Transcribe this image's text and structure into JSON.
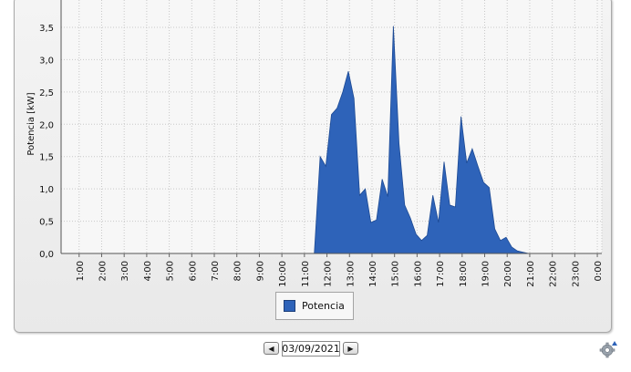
{
  "chart_data": {
    "type": "area",
    "ylabel": "Potencia [kW]",
    "ylim": [
      0,
      3.6
    ],
    "y_ticks": [
      "0,0",
      "0,5",
      "1,0",
      "1,5",
      "2,0",
      "2,5",
      "3,0",
      "3,5"
    ],
    "y_tick_values": [
      0,
      0.5,
      1.0,
      1.5,
      2.0,
      2.5,
      3.0,
      3.5
    ],
    "x_ticks": [
      "1:00",
      "2:00",
      "3:00",
      "4:00",
      "5:00",
      "6:00",
      "7:00",
      "8:00",
      "9:00",
      "10:00",
      "11:00",
      "12:00",
      "13:00",
      "14:00",
      "15:00",
      "16:00",
      "17:00",
      "18:00",
      "19:00",
      "20:00",
      "21:00",
      "22:00",
      "23:00",
      "0:00"
    ],
    "xlim_hours": [
      0.2,
      24.2
    ],
    "grid": true,
    "legend_position": "bottom",
    "series": [
      {
        "name": "Potencia",
        "color": "#2e63b9",
        "x": [
          11.44,
          11.7,
          11.95,
          12.2,
          12.45,
          12.7,
          12.95,
          13.2,
          13.45,
          13.7,
          13.95,
          14.2,
          14.45,
          14.7,
          14.95,
          15.2,
          15.45,
          15.7,
          15.95,
          16.2,
          16.45,
          16.7,
          16.95,
          17.2,
          17.45,
          17.7,
          17.95,
          18.2,
          18.45,
          18.7,
          18.95,
          19.2,
          19.45,
          19.7,
          19.95,
          20.2,
          20.45,
          20.7,
          20.95
        ],
        "values": [
          0.0,
          1.5,
          1.35,
          2.15,
          2.25,
          2.5,
          2.82,
          2.4,
          0.9,
          1.0,
          0.48,
          0.52,
          1.15,
          0.88,
          3.52,
          1.7,
          0.75,
          0.55,
          0.3,
          0.2,
          0.28,
          0.9,
          0.48,
          1.42,
          0.75,
          0.72,
          2.12,
          1.4,
          1.62,
          1.35,
          1.1,
          1.02,
          0.38,
          0.2,
          0.25,
          0.1,
          0.04,
          0.02,
          0.0
        ]
      }
    ]
  },
  "legend": {
    "label": "Potencia",
    "color": "#2e63b9"
  },
  "date_nav": {
    "date": "03/09/2021",
    "prev_icon": "triangle-left-icon",
    "next_icon": "triangle-right-icon"
  },
  "settings": {
    "icon": "gear-icon"
  }
}
